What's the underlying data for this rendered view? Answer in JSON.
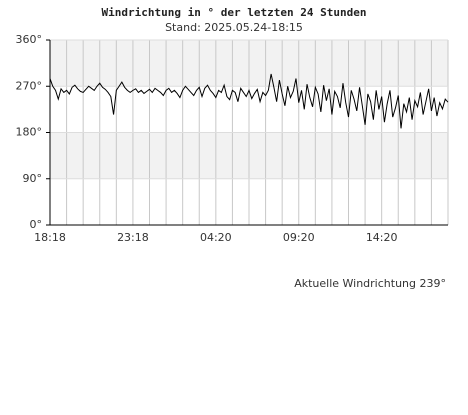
{
  "chart_data": {
    "type": "line",
    "title": "Windrichtung in ° der letzten 24 Stunden",
    "subtitle": "Stand: 2025.05.24-18:15",
    "annotation": "Aktuelle Windrichtung 239°",
    "categories": [
      "18:18",
      null,
      null,
      null,
      null,
      null,
      null,
      null,
      null,
      null,
      null,
      null,
      null,
      null,
      null,
      null,
      null,
      null,
      null,
      null,
      null,
      null,
      null,
      null,
      null,
      null,
      null,
      null,
      null,
      null,
      "23:18",
      null,
      null,
      null,
      null,
      null,
      null,
      null,
      null,
      null,
      null,
      null,
      null,
      null,
      null,
      null,
      null,
      null,
      null,
      null,
      null,
      null,
      null,
      null,
      null,
      null,
      null,
      null,
      null,
      null,
      "04:20",
      null,
      null,
      null,
      null,
      null,
      null,
      null,
      null,
      null,
      null,
      null,
      null,
      null,
      null,
      null,
      null,
      null,
      null,
      null,
      null,
      null,
      null,
      null,
      null,
      null,
      null,
      null,
      null,
      null,
      "09:20",
      null,
      null,
      null,
      null,
      null,
      null,
      null,
      null,
      null,
      null,
      null,
      null,
      null,
      null,
      null,
      null,
      null,
      null,
      null,
      null,
      null,
      null,
      null,
      null,
      null,
      null,
      null,
      null,
      null,
      "14:20",
      null,
      null,
      null,
      null,
      null,
      null,
      null,
      null,
      null,
      null,
      null,
      null,
      null,
      null,
      null,
      null,
      null,
      null,
      null,
      null,
      null,
      null,
      null,
      null
    ],
    "series": [
      {
        "color": "#000000",
        "values": [
          285,
          270,
          262,
          245,
          265,
          258,
          262,
          255,
          268,
          272,
          265,
          260,
          258,
          264,
          270,
          266,
          262,
          270,
          276,
          268,
          264,
          258,
          250,
          215,
          262,
          270,
          278,
          268,
          262,
          258,
          262,
          265,
          258,
          262,
          256,
          260,
          264,
          258,
          266,
          262,
          258,
          252,
          262,
          266,
          258,
          262,
          256,
          248,
          262,
          270,
          264,
          258,
          252,
          262,
          268,
          250,
          266,
          272,
          262,
          256,
          248,
          262,
          258,
          272,
          250,
          244,
          262,
          258,
          240,
          266,
          258,
          250,
          262,
          246,
          256,
          264,
          240,
          258,
          252,
          262,
          294,
          268,
          240,
          282,
          255,
          232,
          270,
          248,
          260,
          285,
          238,
          262,
          225,
          274,
          248,
          230,
          268,
          255,
          220,
          272,
          242,
          265,
          215,
          260,
          250,
          228,
          276,
          238,
          210,
          262,
          245,
          222,
          268,
          232,
          195,
          255,
          240,
          205,
          262,
          225,
          250,
          200,
          236,
          262,
          210,
          228,
          252,
          188,
          236,
          220,
          248,
          205,
          242,
          230,
          258,
          215,
          240,
          265,
          222,
          248,
          212,
          238,
          226,
          245,
          239
        ]
      }
    ],
    "ylim": [
      0,
      360
    ],
    "yticks": [
      {
        "value": 0,
        "label": "0°"
      },
      {
        "value": 90,
        "label": "90°"
      },
      {
        "value": 180,
        "label": "180°"
      },
      {
        "value": 270,
        "label": "270°"
      },
      {
        "value": 360,
        "label": "360°"
      }
    ],
    "grid": true
  }
}
